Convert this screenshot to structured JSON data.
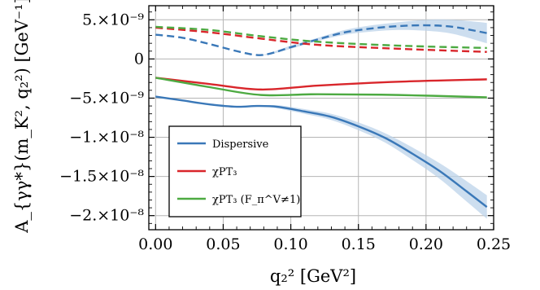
{
  "chart_data": {
    "type": "line",
    "xlabel": "q₂² [GeV²]",
    "ylabel": "A_{γγ*}(m_K², q₂²) [GeV⁻¹]",
    "xlim": [
      -0.005,
      0.25
    ],
    "ylim": [
      -2.18e-08,
      6.8e-09
    ],
    "grid": true,
    "legend_position": "bottom-left",
    "x_ticks": [
      0.0,
      0.05,
      0.1,
      0.15,
      0.2,
      0.25
    ],
    "x_tick_labels": [
      "0.00",
      "0.05",
      "0.10",
      "0.15",
      "0.20",
      "0.25"
    ],
    "y_ticks": [
      5e-09,
      0,
      -5e-09,
      -1e-08,
      -1.5e-08,
      -2e-08
    ],
    "y_tick_labels": [
      "5.×10⁻⁹",
      "0",
      "−5.×10⁻⁹",
      "−1.×10⁻⁸",
      "−1.5×10⁻⁸",
      "−2.×10⁻⁸"
    ],
    "series": [
      {
        "name": "Dispersive",
        "component": "real",
        "style": "solid",
        "color": "#3a78b8",
        "band_color": "#bcd3ea",
        "x": [
          0,
          0.02,
          0.04,
          0.06,
          0.075,
          0.09,
          0.11,
          0.13,
          0.15,
          0.17,
          0.19,
          0.21,
          0.23,
          0.245
        ],
        "y": [
          -4.8e-09,
          -5.3e-09,
          -5.8e-09,
          -6.1e-09,
          -6e-09,
          -6.1e-09,
          -6.7e-09,
          -7.4e-09,
          -8.6e-09,
          -1.01e-08,
          -1.21e-08,
          -1.43e-08,
          -1.69e-08,
          -1.89e-08
        ],
        "band": [
          0,
          0,
          0,
          0,
          0,
          2e-10,
          3e-10,
          4e-10,
          5e-10,
          6e-10,
          8e-10,
          1e-09,
          1.3e-09,
          1.5e-09
        ]
      },
      {
        "name": "Dispersive",
        "component": "imaginary",
        "style": "dashed",
        "color": "#3a78b8",
        "band_color": "#bcd3ea",
        "x": [
          0,
          0.02,
          0.04,
          0.06,
          0.075,
          0.085,
          0.1,
          0.12,
          0.14,
          0.16,
          0.18,
          0.2,
          0.22,
          0.245
        ],
        "y": [
          3.1e-09,
          2.7e-09,
          1.9e-09,
          1e-09,
          5e-10,
          7e-10,
          1.5e-09,
          2.5e-09,
          3.4e-09,
          3.9e-09,
          4.2e-09,
          4.3e-09,
          4.1e-09,
          3.3e-09
        ],
        "band": [
          0,
          0,
          0,
          0,
          0,
          1e-10,
          2e-10,
          2e-10,
          3e-10,
          4e-10,
          5e-10,
          7e-10,
          9e-10,
          1.3e-09
        ]
      },
      {
        "name": "χPT₃",
        "component": "real",
        "style": "solid",
        "color": "#d9262b",
        "x": [
          0,
          0.04,
          0.078,
          0.12,
          0.18,
          0.245
        ],
        "y": [
          -2.4e-09,
          -3.2e-09,
          -3.9e-09,
          -3.4e-09,
          -2.9e-09,
          -2.6e-09
        ]
      },
      {
        "name": "χPT₃",
        "component": "imaginary",
        "style": "dashed",
        "color": "#d9262b",
        "x": [
          0,
          0.04,
          0.078,
          0.12,
          0.18,
          0.245
        ],
        "y": [
          4e-09,
          3.4e-09,
          2.6e-09,
          1.8e-09,
          1.3e-09,
          9e-10
        ]
      },
      {
        "name": "χPT₃ (F_π^V≠1)",
        "component": "real",
        "style": "solid",
        "color": "#4daa42",
        "x": [
          0,
          0.04,
          0.078,
          0.12,
          0.18,
          0.245
        ],
        "y": [
          -2.4e-09,
          -3.6e-09,
          -4.6e-09,
          -4.5e-09,
          -4.6e-09,
          -4.9e-09
        ]
      },
      {
        "name": "χPT₃ (F_π^V≠1)",
        "component": "imaginary",
        "style": "dashed",
        "color": "#4daa42",
        "x": [
          0,
          0.04,
          0.078,
          0.12,
          0.18,
          0.245
        ],
        "y": [
          4.1e-09,
          3.7e-09,
          2.9e-09,
          2.2e-09,
          1.7e-09,
          1.4e-09
        ]
      }
    ],
    "legend": [
      {
        "label": "Dispersive",
        "color": "#3a78b8"
      },
      {
        "label": "χPT₃",
        "color": "#d9262b"
      },
      {
        "label": "χPT₃ (F_π^V≠1)",
        "color": "#4daa42"
      }
    ]
  }
}
